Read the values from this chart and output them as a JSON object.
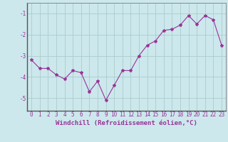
{
  "x": [
    0,
    1,
    2,
    3,
    4,
    5,
    6,
    7,
    8,
    9,
    10,
    11,
    12,
    13,
    14,
    15,
    16,
    17,
    18,
    19,
    20,
    21,
    22,
    23
  ],
  "y": [
    -3.2,
    -3.6,
    -3.6,
    -3.9,
    -4.1,
    -3.7,
    -3.8,
    -4.7,
    -4.2,
    -5.1,
    -4.4,
    -3.7,
    -3.7,
    -3.0,
    -2.5,
    -2.3,
    -1.8,
    -1.75,
    -1.55,
    -1.1,
    -1.5,
    -1.1,
    -1.3,
    -2.5
  ],
  "line_color": "#993399",
  "marker": "*",
  "marker_size": 3,
  "bg_color": "#cce8ec",
  "grid_color": "#aacccc",
  "axis_color": "#993399",
  "xlabel": "Windchill (Refroidissement éolien,°C)",
  "xlim": [
    -0.5,
    23.5
  ],
  "ylim": [
    -5.6,
    -0.5
  ],
  "yticks": [
    -5,
    -4,
    -3,
    -2,
    -1
  ],
  "xticks": [
    0,
    1,
    2,
    3,
    4,
    5,
    6,
    7,
    8,
    9,
    10,
    11,
    12,
    13,
    14,
    15,
    16,
    17,
    18,
    19,
    20,
    21,
    22,
    23
  ],
  "tick_fontsize": 5.5,
  "xlabel_fontsize": 6.5,
  "linewidth": 0.8
}
